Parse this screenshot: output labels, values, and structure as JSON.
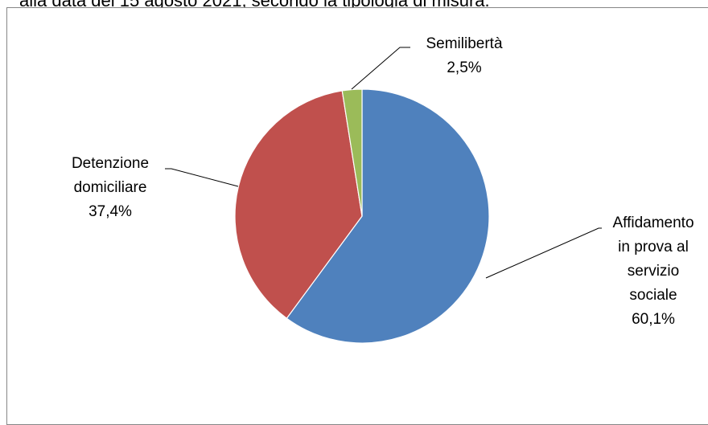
{
  "caption": "alla data del 15 agosto 2021, secondo la tipologia di misura.",
  "chart_data": {
    "type": "pie",
    "slices": [
      {
        "label_lines": [
          "Affidamento",
          "in prova al",
          "servizio",
          "sociale"
        ],
        "value": 60.1,
        "value_label": "60,1%",
        "color": "#4F81BD"
      },
      {
        "label_lines": [
          "Detenzione",
          "domiciliare"
        ],
        "value": 37.4,
        "value_label": "37,4%",
        "color": "#C0504D"
      },
      {
        "label_lines": [
          "Semilibertà"
        ],
        "value": 2.5,
        "value_label": "2,5%",
        "color": "#9BBB59"
      }
    ]
  }
}
